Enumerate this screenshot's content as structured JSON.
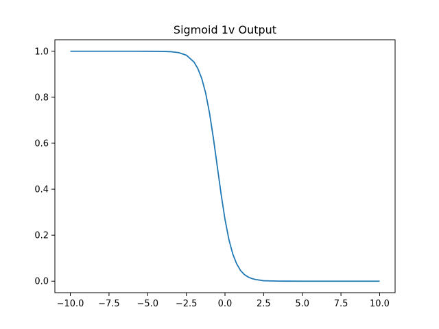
{
  "chart_data": {
    "type": "line",
    "title": "Sigmoid 1v Output",
    "xlabel": "",
    "ylabel": "",
    "xlim": [
      -11,
      11
    ],
    "ylim": [
      -0.05,
      1.05
    ],
    "grid": false,
    "x_ticks": [
      -10.0,
      -7.5,
      -5.0,
      -2.5,
      0.0,
      2.5,
      5.0,
      7.5,
      10.0
    ],
    "x_tick_labels": [
      "−10.0",
      "−7.5",
      "−5.0",
      "−2.5",
      "0.0",
      "2.5",
      "5.0",
      "7.5",
      "10.0"
    ],
    "y_ticks": [
      0.0,
      0.2,
      0.4,
      0.6,
      0.8,
      1.0
    ],
    "y_tick_labels": [
      "0.0",
      "0.2",
      "0.4",
      "0.6",
      "0.8",
      "1.0"
    ],
    "series": [
      {
        "color": "#1f77b4",
        "x": [
          -10,
          -9,
          -8,
          -7,
          -6,
          -5,
          -4,
          -3.5,
          -3,
          -2.5,
          -2,
          -1.75,
          -1.5,
          -1.25,
          -1,
          -0.75,
          -0.5,
          -0.25,
          0,
          0.25,
          0.5,
          0.75,
          1,
          1.25,
          1.5,
          1.75,
          2,
          2.5,
          3,
          3.5,
          4,
          5,
          6,
          7,
          8,
          9,
          10
        ],
        "y": [
          1.0,
          1.0,
          1.0,
          1.0,
          1.0,
          0.9999,
          0.9995,
          0.998,
          0.994,
          0.983,
          0.953,
          0.924,
          0.881,
          0.818,
          0.731,
          0.622,
          0.5,
          0.378,
          0.269,
          0.182,
          0.119,
          0.076,
          0.047,
          0.029,
          0.018,
          0.011,
          0.007,
          0.002,
          0.001,
          0.0003,
          0.0001,
          0.0,
          0.0,
          0.0,
          0.0,
          0.0,
          0.0
        ]
      }
    ]
  }
}
